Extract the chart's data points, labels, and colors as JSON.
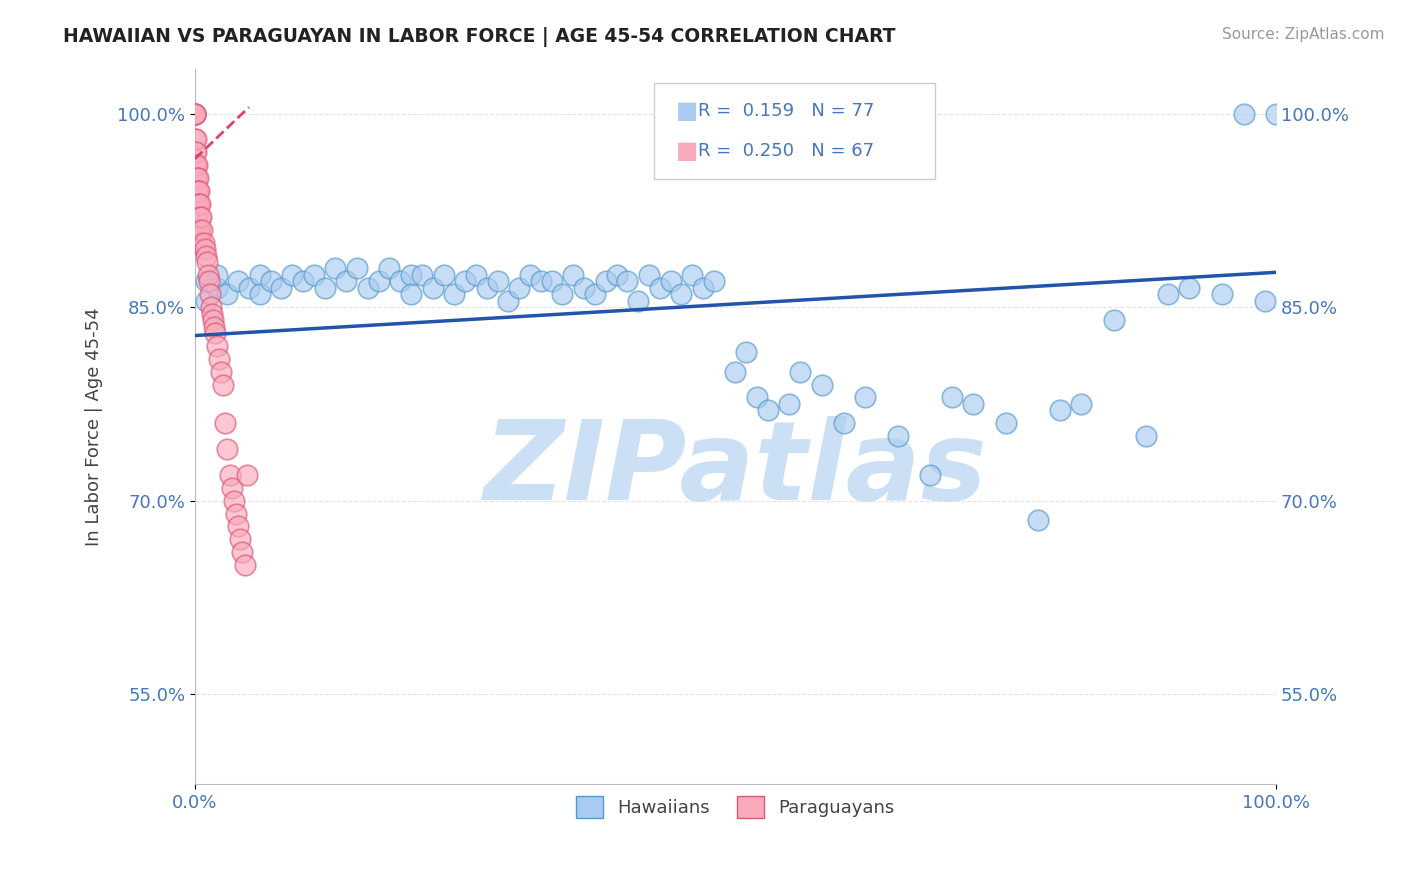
{
  "title": "HAWAIIAN VS PARAGUAYAN IN LABOR FORCE | AGE 45-54 CORRELATION CHART",
  "source": "Source: ZipAtlas.com",
  "ylabel": "In Labor Force | Age 45-54",
  "xlim": [
    0.0,
    1.0
  ],
  "ylim": [
    0.48,
    1.035
  ],
  "yticks": [
    0.55,
    0.7,
    0.85,
    1.0
  ],
  "ytick_labels": [
    "55.0%",
    "70.0%",
    "85.0%",
    "100.0%"
  ],
  "xticks": [
    0.0,
    1.0
  ],
  "xtick_labels": [
    "0.0%",
    "100.0%"
  ],
  "hawaiian_R": "0.159",
  "hawaiian_N": "77",
  "paraguayan_R": "0.250",
  "paraguayan_N": "67",
  "hawaiian_color": "#aaccf0",
  "hawaiian_edge": "#5599cc",
  "paraguayan_color": "#f8aabb",
  "paraguayan_edge": "#dd5577",
  "trend_hawaiian_color": "#2255aa",
  "trend_paraguayan_color": "#dd4466",
  "watermark": "ZIPatlas",
  "watermark_color": "#cce0f5",
  "background_color": "#ffffff",
  "title_color": "#222222",
  "axis_label_color": "#444444",
  "tick_color": "#4477bb",
  "legend_label_hawaiians": "Hawaiians",
  "legend_label_paraguayans": "Paraguayans",
  "hawaiian_x": [
    0.01,
    0.01,
    0.02,
    0.02,
    0.03,
    0.04,
    0.05,
    0.06,
    0.06,
    0.07,
    0.08,
    0.09,
    0.1,
    0.11,
    0.12,
    0.13,
    0.14,
    0.15,
    0.16,
    0.17,
    0.18,
    0.19,
    0.2,
    0.2,
    0.21,
    0.22,
    0.23,
    0.24,
    0.25,
    0.26,
    0.27,
    0.28,
    0.29,
    0.3,
    0.31,
    0.32,
    0.33,
    0.34,
    0.35,
    0.36,
    0.37,
    0.38,
    0.39,
    0.4,
    0.41,
    0.42,
    0.43,
    0.44,
    0.45,
    0.46,
    0.47,
    0.48,
    0.5,
    0.51,
    0.52,
    0.53,
    0.55,
    0.56,
    0.58,
    0.6,
    0.62,
    0.65,
    0.68,
    0.7,
    0.72,
    0.75,
    0.78,
    0.8,
    0.82,
    0.85,
    0.88,
    0.9,
    0.92,
    0.95,
    0.97,
    0.99,
    1.0
  ],
  "hawaiian_y": [
    0.87,
    0.855,
    0.865,
    0.875,
    0.86,
    0.87,
    0.865,
    0.875,
    0.86,
    0.87,
    0.865,
    0.875,
    0.87,
    0.875,
    0.865,
    0.88,
    0.87,
    0.88,
    0.865,
    0.87,
    0.88,
    0.87,
    0.875,
    0.86,
    0.875,
    0.865,
    0.875,
    0.86,
    0.87,
    0.875,
    0.865,
    0.87,
    0.855,
    0.865,
    0.875,
    0.87,
    0.87,
    0.86,
    0.875,
    0.865,
    0.86,
    0.87,
    0.875,
    0.87,
    0.855,
    0.875,
    0.865,
    0.87,
    0.86,
    0.875,
    0.865,
    0.87,
    0.8,
    0.815,
    0.78,
    0.77,
    0.775,
    0.8,
    0.79,
    0.76,
    0.78,
    0.75,
    0.72,
    0.78,
    0.775,
    0.76,
    0.685,
    0.77,
    0.775,
    0.84,
    0.75,
    0.86,
    0.865,
    0.86,
    1.0,
    0.855,
    1.0
  ],
  "paraguayan_x": [
    0.0,
    0.0,
    0.0,
    0.0,
    0.0,
    0.0,
    0.0,
    0.0,
    0.0,
    0.0,
    0.0,
    0.0,
    0.0,
    0.001,
    0.001,
    0.001,
    0.001,
    0.001,
    0.001,
    0.001,
    0.002,
    0.002,
    0.002,
    0.002,
    0.002,
    0.002,
    0.002,
    0.003,
    0.003,
    0.003,
    0.003,
    0.004,
    0.004,
    0.004,
    0.005,
    0.005,
    0.005,
    0.006,
    0.006,
    0.007,
    0.008,
    0.009,
    0.01,
    0.011,
    0.012,
    0.013,
    0.014,
    0.015,
    0.016,
    0.017,
    0.018,
    0.019,
    0.02,
    0.022,
    0.024,
    0.026,
    0.028,
    0.03,
    0.032,
    0.034,
    0.036,
    0.038,
    0.04,
    0.042,
    0.044,
    0.046,
    0.048
  ],
  "paraguayan_y": [
    1.0,
    1.0,
    1.0,
    1.0,
    0.98,
    0.97,
    0.96,
    0.95,
    0.94,
    0.93,
    0.92,
    0.91,
    0.9,
    0.98,
    0.97,
    0.96,
    0.95,
    0.93,
    0.92,
    0.91,
    0.96,
    0.95,
    0.94,
    0.93,
    0.92,
    0.91,
    0.9,
    0.95,
    0.94,
    0.93,
    0.91,
    0.94,
    0.93,
    0.91,
    0.93,
    0.92,
    0.91,
    0.92,
    0.9,
    0.91,
    0.9,
    0.895,
    0.89,
    0.885,
    0.875,
    0.87,
    0.86,
    0.85,
    0.845,
    0.84,
    0.835,
    0.83,
    0.82,
    0.81,
    0.8,
    0.79,
    0.76,
    0.74,
    0.72,
    0.71,
    0.7,
    0.69,
    0.68,
    0.67,
    0.66,
    0.65,
    0.72
  ],
  "trend_h_x0": 0.0,
  "trend_h_x1": 1.0,
  "trend_h_y0": 0.828,
  "trend_h_y1": 0.877,
  "trend_p_x0": 0.0,
  "trend_p_x1": 0.05,
  "trend_p_y0": 0.965,
  "trend_p_y1": 1.005
}
